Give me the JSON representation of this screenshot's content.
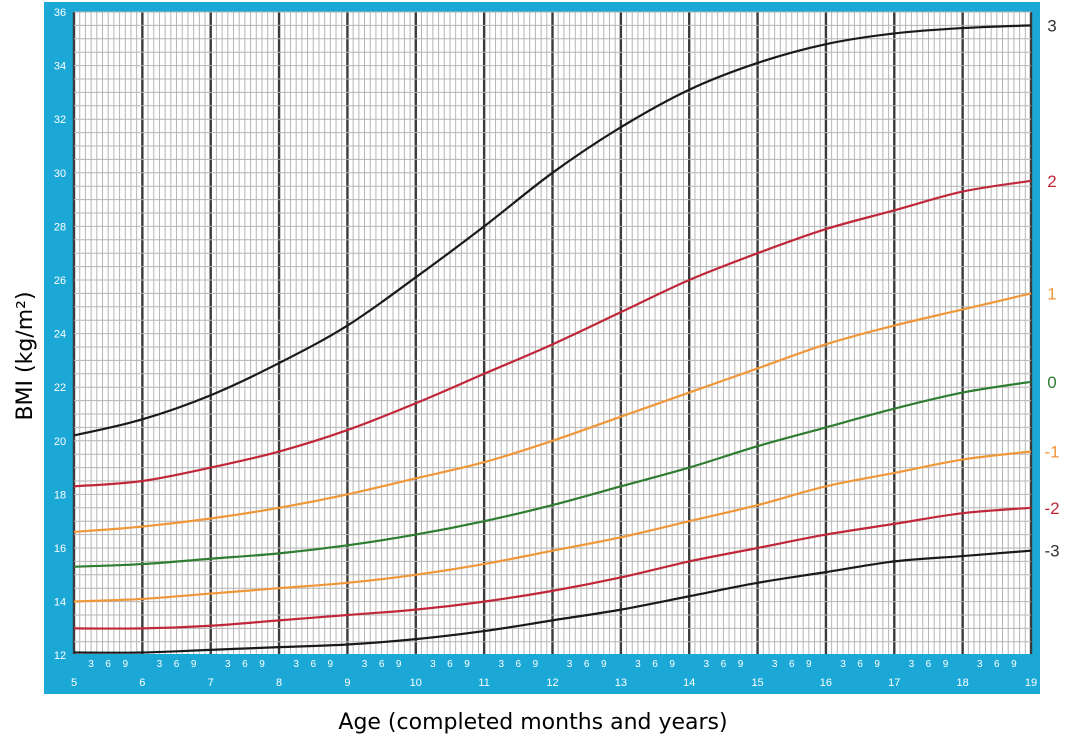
{
  "chart_data": {
    "type": "line",
    "title": "",
    "xlabel": "Age (completed months and years)",
    "ylabel": "BMI (kg/m²)",
    "xlim": [
      5,
      19
    ],
    "ylim": [
      11,
      36
    ],
    "x_major_ticks": [
      "5",
      "6",
      "7",
      "8",
      "9",
      "10",
      "11",
      "12",
      "13",
      "14",
      "15",
      "16",
      "17",
      "18",
      "19"
    ],
    "x_minor_tick_labels": [
      "3",
      "6",
      "9"
    ],
    "y_ticks": [
      "12",
      "14",
      "16",
      "18",
      "20",
      "22",
      "24",
      "26",
      "28",
      "30",
      "32",
      "34",
      "36"
    ],
    "grid": true,
    "frame_color": "#1ba8d6",
    "x": [
      5,
      6,
      7,
      8,
      9,
      10,
      11,
      12,
      13,
      14,
      15,
      16,
      17,
      18,
      19
    ],
    "series": [
      {
        "name": "3",
        "color": "#1a1a1a",
        "label_color": "#333333",
        "values": [
          20.2,
          20.8,
          21.7,
          22.9,
          24.3,
          26.1,
          28.0,
          30.0,
          31.7,
          33.1,
          34.1,
          34.8,
          35.2,
          35.4,
          35.5
        ]
      },
      {
        "name": "2",
        "color": "#c0283a",
        "label_color": "#c0283a",
        "values": [
          18.3,
          18.5,
          19.0,
          19.6,
          20.4,
          21.4,
          22.5,
          23.6,
          24.8,
          26.0,
          27.0,
          27.9,
          28.6,
          29.3,
          29.7
        ]
      },
      {
        "name": "1",
        "color": "#f0973a",
        "label_color": "#f0973a",
        "values": [
          16.6,
          16.8,
          17.1,
          17.5,
          18.0,
          18.6,
          19.2,
          20.0,
          20.9,
          21.8,
          22.7,
          23.6,
          24.3,
          24.9,
          25.5
        ]
      },
      {
        "name": "0",
        "color": "#2e7d32",
        "label_color": "#2e7d32",
        "values": [
          15.3,
          15.4,
          15.6,
          15.8,
          16.1,
          16.5,
          17.0,
          17.6,
          18.3,
          19.0,
          19.8,
          20.5,
          21.2,
          21.8,
          22.2
        ]
      },
      {
        "name": "-1",
        "color": "#f0973a",
        "label_color": "#f0973a",
        "values": [
          14.0,
          14.1,
          14.3,
          14.5,
          14.7,
          15.0,
          15.4,
          15.9,
          16.4,
          17.0,
          17.6,
          18.3,
          18.8,
          19.3,
          19.6
        ]
      },
      {
        "name": "-2",
        "color": "#c0283a",
        "label_color": "#c0283a",
        "values": [
          13.0,
          13.0,
          13.1,
          13.3,
          13.5,
          13.7,
          14.0,
          14.4,
          14.9,
          15.5,
          16.0,
          16.5,
          16.9,
          17.3,
          17.5
        ]
      },
      {
        "name": "-3",
        "color": "#1a1a1a",
        "label_color": "#333333",
        "values": [
          12.1,
          12.1,
          12.2,
          12.3,
          12.4,
          12.6,
          12.9,
          13.3,
          13.7,
          14.2,
          14.7,
          15.1,
          15.5,
          15.7,
          15.9
        ]
      }
    ]
  }
}
